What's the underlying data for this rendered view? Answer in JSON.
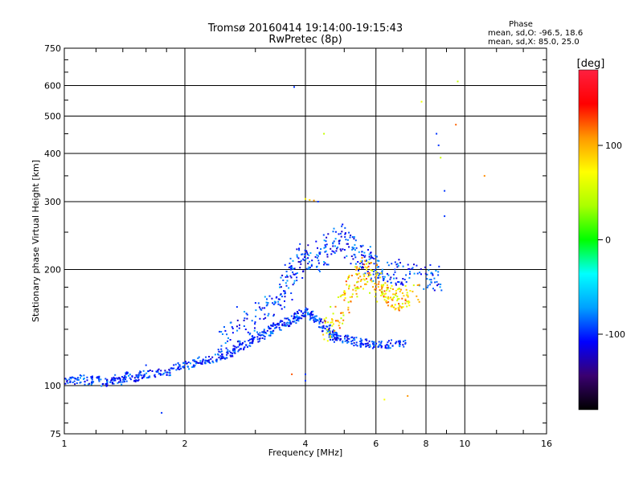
{
  "chart_data": {
    "type": "scatter",
    "title": "Tromsø 20160414 19:14:00-19:15:43",
    "subtitle": "RwPretec (8p)",
    "xlabel": "Frequency [MHz]",
    "ylabel": "Stationary phase Virtual Height [km]",
    "x_scale": "log",
    "y_scale": "log",
    "xlim": [
      1,
      16
    ],
    "ylim": [
      75,
      750
    ],
    "x_ticks": [
      1,
      2,
      4,
      6,
      8,
      10,
      16
    ],
    "x_tick_labels": [
      "1",
      "2",
      "4",
      "6",
      "8",
      "10",
      "16"
    ],
    "y_ticks": [
      75,
      100,
      200,
      300,
      400,
      500,
      600,
      750
    ],
    "y_tick_labels": [
      "75",
      "100",
      "200",
      "300",
      "400",
      "500",
      "600",
      "750"
    ],
    "grid": true,
    "stats": {
      "heading": "Phase",
      "line_o": "mean, sd,O: -96.5, 18.6",
      "line_x": "mean, sd,X:  85.0, 25.0"
    },
    "colorbar": {
      "label": "[deg]",
      "range": [
        -180,
        180
      ],
      "ticks": [
        100,
        0,
        -100
      ],
      "tick_labels": [
        "100",
        "0",
        "-100"
      ],
      "colors": [
        "#000000",
        "#3a0070",
        "#0000ff",
        "#00a0ff",
        "#00ffff",
        "#00ff00",
        "#aaff00",
        "#ffff00",
        "#ff9900",
        "#ff0000",
        "#ff2040"
      ]
    },
    "trace_o": {
      "name": "",
      "phase_mean": -96.5,
      "points": [
        [
          1.0,
          103
        ],
        [
          1.05,
          103
        ],
        [
          1.1,
          104
        ],
        [
          1.15,
          103
        ],
        [
          1.2,
          104
        ],
        [
          1.25,
          102
        ],
        [
          1.3,
          103
        ],
        [
          1.35,
          104
        ],
        [
          1.4,
          103
        ],
        [
          1.45,
          106
        ],
        [
          1.5,
          105
        ],
        [
          1.55,
          107
        ],
        [
          1.6,
          107
        ],
        [
          1.7,
          108
        ],
        [
          1.8,
          109
        ],
        [
          1.9,
          112
        ],
        [
          2.0,
          113
        ],
        [
          2.1,
          114
        ],
        [
          2.2,
          116
        ],
        [
          2.3,
          117
        ],
        [
          2.4,
          118
        ],
        [
          2.5,
          120
        ],
        [
          2.6,
          122
        ],
        [
          2.7,
          124
        ],
        [
          2.8,
          127
        ],
        [
          2.9,
          129
        ],
        [
          3.0,
          132
        ],
        [
          3.1,
          135
        ],
        [
          3.2,
          138
        ],
        [
          3.3,
          140
        ],
        [
          3.4,
          142
        ],
        [
          3.5,
          144
        ],
        [
          3.6,
          146
        ],
        [
          3.7,
          148
        ],
        [
          3.8,
          151
        ],
        [
          3.9,
          153
        ],
        [
          4.0,
          155
        ],
        [
          4.1,
          152
        ],
        [
          4.2,
          150
        ],
        [
          4.3,
          148
        ],
        [
          4.4,
          144
        ],
        [
          4.5,
          140
        ],
        [
          4.6,
          136
        ],
        [
          4.7,
          134
        ],
        [
          4.8,
          133
        ],
        [
          5.0,
          132
        ],
        [
          5.2,
          131
        ],
        [
          5.4,
          130
        ],
        [
          5.6,
          129
        ],
        [
          5.8,
          129
        ],
        [
          6.0,
          128
        ],
        [
          6.3,
          128
        ],
        [
          6.6,
          128
        ],
        [
          7.0,
          128
        ]
      ]
    },
    "trace_upper": {
      "name": "",
      "points": [
        [
          2.5,
          132
        ],
        [
          2.7,
          138
        ],
        [
          2.9,
          145
        ],
        [
          3.1,
          152
        ],
        [
          3.3,
          160
        ],
        [
          3.5,
          170
        ],
        [
          3.6,
          180
        ],
        [
          3.7,
          190
        ],
        [
          3.8,
          200
        ],
        [
          3.9,
          210
        ],
        [
          4.0,
          215
        ],
        [
          4.2,
          212
        ],
        [
          4.4,
          222
        ],
        [
          4.6,
          232
        ],
        [
          4.8,
          238
        ],
        [
          5.0,
          242
        ],
        [
          5.2,
          230
        ],
        [
          5.4,
          220
        ],
        [
          5.6,
          215
        ],
        [
          5.8,
          208
        ],
        [
          6.0,
          202
        ],
        [
          6.3,
          200
        ],
        [
          6.6,
          198
        ],
        [
          7.0,
          196
        ],
        [
          7.5,
          194
        ],
        [
          8.0,
          192
        ],
        [
          8.5,
          190
        ]
      ]
    },
    "trace_x": {
      "name": "",
      "phase_mean": 85.0,
      "points": [
        [
          4.6,
          140
        ],
        [
          4.8,
          150
        ],
        [
          5.0,
          165
        ],
        [
          5.2,
          180
        ],
        [
          5.4,
          190
        ],
        [
          5.6,
          200
        ],
        [
          5.8,
          195
        ],
        [
          6.0,
          185
        ],
        [
          6.2,
          175
        ],
        [
          6.4,
          170
        ],
        [
          6.6,
          168
        ],
        [
          6.8,
          168
        ],
        [
          7.0,
          170
        ],
        [
          7.4,
          172
        ]
      ]
    },
    "isolated_points": [
      [
        4.0,
        305
      ],
      [
        4.1,
        303
      ],
      [
        4.2,
        302
      ],
      [
        4.3,
        300
      ],
      [
        4.45,
        450
      ],
      [
        4.0,
        103
      ],
      [
        4.0,
        107
      ],
      [
        3.75,
        595
      ],
      [
        7.8,
        545
      ],
      [
        9.6,
        615
      ],
      [
        9.5,
        475
      ],
      [
        11.2,
        350
      ],
      [
        8.5,
        450
      ],
      [
        8.6,
        420
      ],
      [
        8.7,
        390
      ],
      [
        8.9,
        320
      ],
      [
        8.9,
        275
      ],
      [
        6.3,
        92
      ],
      [
        7.2,
        94
      ],
      [
        1.75,
        85
      ],
      [
        1.6,
        113
      ],
      [
        2.7,
        160
      ],
      [
        3.7,
        107
      ]
    ]
  }
}
